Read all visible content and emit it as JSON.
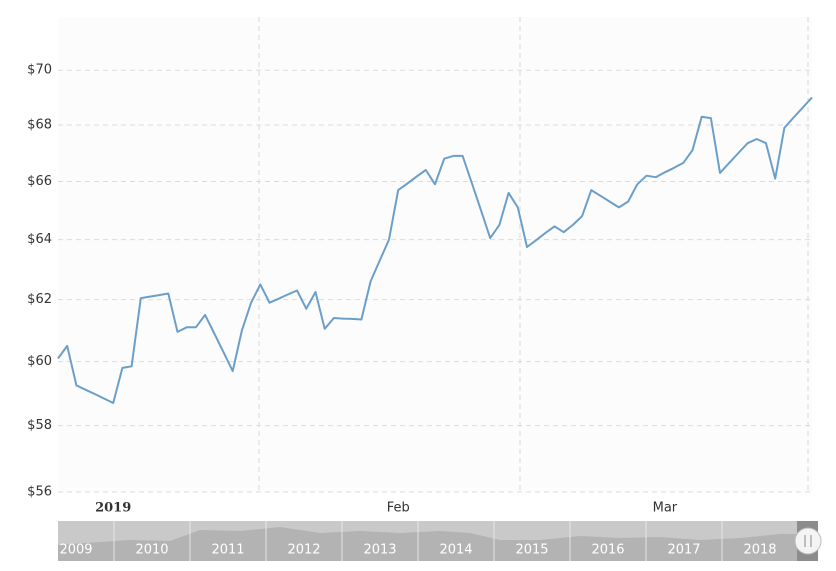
{
  "chart_data": {
    "type": "line",
    "log_scale": true,
    "grid": true,
    "color": "#6b9fc9",
    "ylim": [
      56,
      72
    ],
    "yticks": [
      {
        "value": 56,
        "label": "$56"
      },
      {
        "value": 58,
        "label": "$58"
      },
      {
        "value": 60,
        "label": "$60"
      },
      {
        "value": 62,
        "label": "$62"
      },
      {
        "value": 64,
        "label": "$64"
      },
      {
        "value": 66,
        "label": "$66"
      },
      {
        "value": 68,
        "label": "$68"
      },
      {
        "value": 70,
        "label": "$70"
      }
    ],
    "categories": [
      null,
      null,
      null,
      null,
      null,
      null,
      "2019",
      null,
      null,
      null,
      null,
      null,
      null,
      null,
      null,
      null,
      null,
      null,
      null,
      null,
      null,
      null,
      null,
      null,
      null,
      null,
      null,
      null,
      null,
      null,
      null,
      null,
      null,
      null,
      null,
      null,
      null,
      "Feb",
      null,
      null,
      null,
      null,
      null,
      null,
      null,
      null,
      null,
      null,
      null,
      null,
      null,
      null,
      null,
      null,
      null,
      null,
      null,
      null,
      null,
      null,
      null,
      null,
      null,
      null,
      null,
      null,
      "Mar",
      null,
      null,
      null,
      null,
      null,
      null,
      null,
      null,
      null,
      null,
      null,
      null,
      null,
      null,
      null,
      null
    ],
    "values": [
      60.1,
      60.5,
      59.25,
      59.11,
      58.98,
      58.84,
      58.7,
      59.8,
      59.85,
      62.05,
      62.1,
      62.15,
      62.2,
      60.95,
      61.1,
      61.1,
      61.5,
      60.9,
      60.3,
      59.7,
      61.0,
      61.9,
      62.5,
      61.9,
      62.03,
      62.17,
      62.3,
      61.7,
      62.25,
      61.05,
      61.4,
      61.38,
      61.37,
      61.35,
      62.6,
      63.3,
      64.0,
      65.7,
      65.93,
      66.17,
      66.4,
      65.9,
      66.8,
      66.9,
      66.9,
      65.95,
      65.0,
      64.05,
      64.5,
      65.6,
      65.1,
      63.75,
      63.98,
      64.22,
      64.45,
      64.25,
      64.5,
      64.8,
      65.7,
      65.5,
      65.3,
      65.1,
      65.3,
      65.9,
      66.2,
      66.15,
      66.32,
      66.48,
      66.65,
      67.1,
      68.3,
      68.25,
      66.3,
      66.65,
      67.0,
      67.35,
      67.5,
      67.35,
      66.1,
      67.9,
      68.27,
      68.63,
      69.0
    ],
    "navigator": {
      "labels": [
        "2009",
        "2010",
        "2011",
        "2012",
        "2013",
        "2014",
        "2015",
        "2016",
        "2017",
        "2018"
      ]
    }
  }
}
